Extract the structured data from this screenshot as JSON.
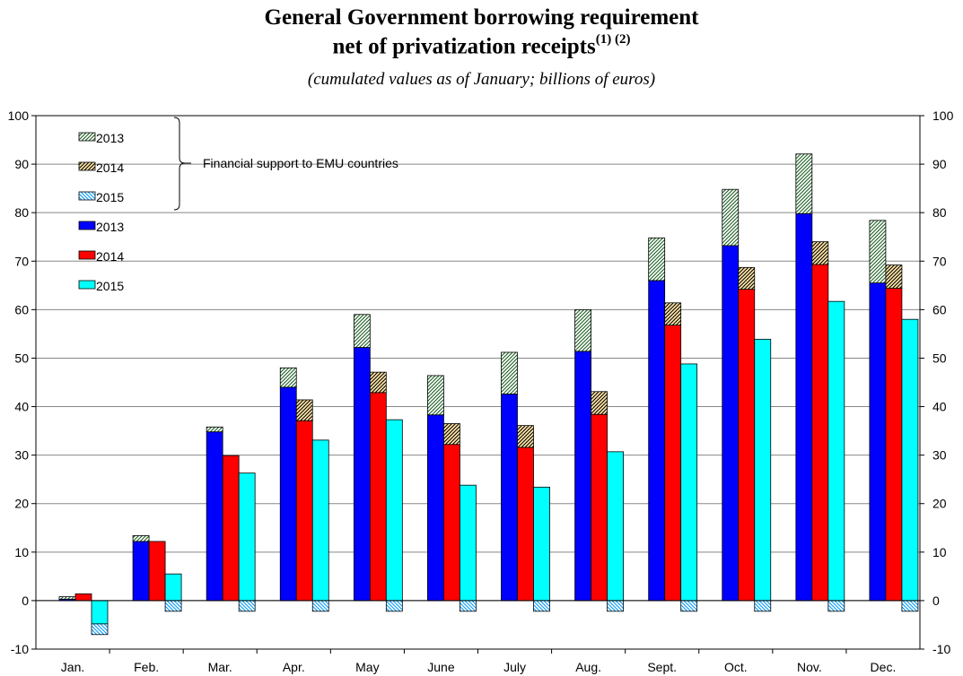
{
  "chart_data": {
    "type": "bar",
    "title_line1": "General Government borrowing requirement",
    "title_line2": "net of privatization receipts",
    "title_notes": "(1) (2)",
    "subtitle": "(cumulated values as of January; billions of euros)",
    "categories": [
      "Jan.",
      "Feb.",
      "Mar.",
      "Apr.",
      "May",
      "June",
      "July",
      "Aug.",
      "Sept.",
      "Oct.",
      "Nov.",
      "Dec."
    ],
    "ylim": [
      -10,
      100
    ],
    "yticks": [
      -10,
      0,
      10,
      20,
      30,
      40,
      50,
      60,
      70,
      80,
      90,
      100
    ],
    "series": [
      {
        "name": "2013",
        "color": "#0000ff",
        "values": [
          0.3,
          12.2,
          34.8,
          44.0,
          52.2,
          38.3,
          42.6,
          51.4,
          66.0,
          73.2,
          79.8,
          65.5
        ]
      },
      {
        "name": "2014",
        "color": "#ff0000",
        "values": [
          1.4,
          12.2,
          29.9,
          37.1,
          42.9,
          32.2,
          31.6,
          38.4,
          56.8,
          64.2,
          69.3,
          64.4
        ]
      },
      {
        "name": "2015",
        "color": "#00ffff",
        "values": [
          -4.8,
          5.5,
          26.3,
          33.1,
          37.3,
          23.8,
          23.4,
          30.7,
          48.8,
          53.9,
          61.7,
          58.0
        ]
      }
    ],
    "support_series": [
      {
        "name": "2013",
        "values": [
          0.5,
          1.2,
          1.0,
          4.0,
          6.8,
          8.1,
          8.6,
          8.6,
          8.8,
          11.6,
          12.3,
          12.9
        ]
      },
      {
        "name": "2014",
        "values": [
          0,
          0,
          0,
          4.3,
          4.2,
          4.3,
          4.5,
          4.7,
          4.6,
          4.5,
          4.7,
          4.8
        ]
      },
      {
        "name": "2015",
        "values": [
          -2.2,
          -2.2,
          -2.2,
          -2.2,
          -2.2,
          -2.2,
          -2.2,
          -2.2,
          -2.2,
          -2.2,
          -2.2,
          -2.2
        ]
      }
    ],
    "legend_position": "top-left",
    "support_label": "Financial support to EMU countries",
    "grid": true
  }
}
